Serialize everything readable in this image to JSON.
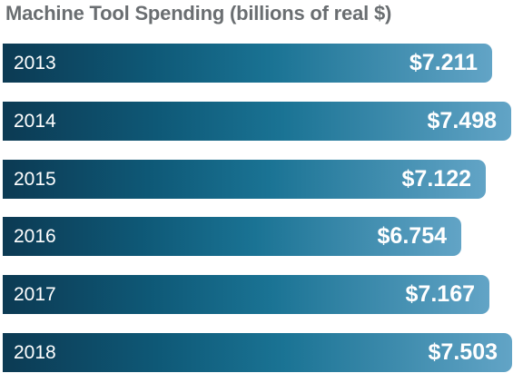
{
  "chart_data": {
    "type": "bar",
    "orientation": "horizontal",
    "title": "Machine Tool Spending (billions of real $)",
    "categories": [
      "2013",
      "2014",
      "2015",
      "2016",
      "2017",
      "2018"
    ],
    "values": [
      7.211,
      7.498,
      7.122,
      6.754,
      7.167,
      7.503
    ],
    "value_labels": [
      "$7.211",
      "$7.498",
      "$7.122",
      "$6.754",
      "$7.167",
      "$7.503"
    ],
    "xlabel": "",
    "ylabel": "",
    "xlim": [
      0,
      7.7
    ],
    "grid": false,
    "legend": "none",
    "colors": {
      "gradient_start": "#0c3a53",
      "gradient_mid": "#1a7394",
      "gradient_end": "#62a4c6",
      "title": "#6a6e71"
    }
  }
}
